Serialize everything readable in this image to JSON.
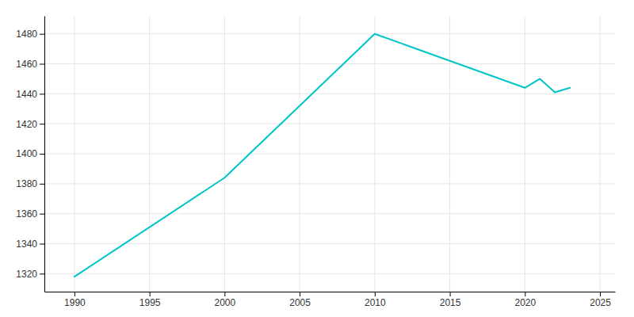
{
  "chart_data": {
    "type": "line",
    "x": [
      1990,
      2000,
      2010,
      2020,
      2021,
      2022,
      2023
    ],
    "values": [
      1318,
      1384,
      1480,
      1444,
      1450,
      1441,
      1444
    ],
    "color": "#00C5C8",
    "xlim": [
      1988,
      2026
    ],
    "ylim": [
      1308,
      1492
    ],
    "xticks": [
      1990,
      1995,
      2000,
      2005,
      2010,
      2015,
      2020,
      2025
    ],
    "yticks": [
      1320,
      1340,
      1360,
      1380,
      1400,
      1420,
      1440,
      1460,
      1480
    ],
    "grid": true
  }
}
